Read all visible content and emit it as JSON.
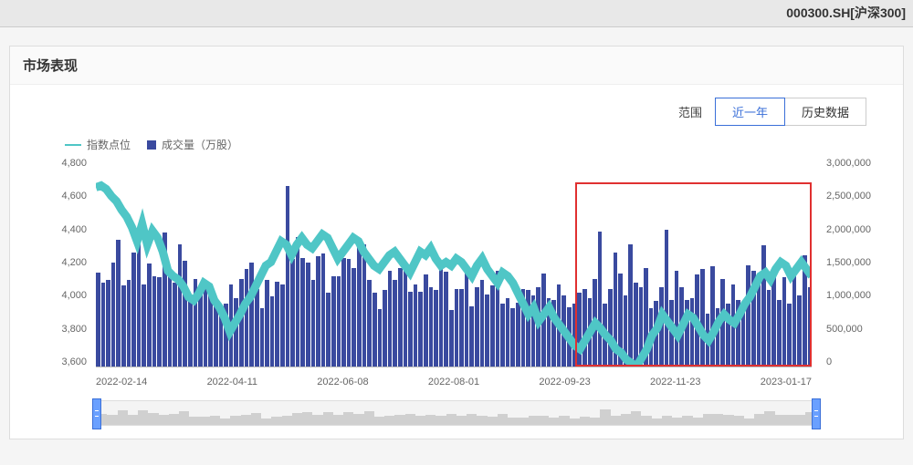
{
  "header": {
    "ticker": "000300.SH[沪深300]"
  },
  "panel": {
    "title": "市场表现"
  },
  "controls": {
    "range_label": "范围",
    "btn_year": "近一年",
    "btn_history": "历史数据",
    "active": "btn_year"
  },
  "legend": {
    "index_line": "指数点位",
    "volume_bar": "成交量（万股）"
  },
  "chart": {
    "type": "combo-bar-line",
    "line_color": "#4fc6c6",
    "bar_color": "#3a4a9f",
    "highlight_color": "#e03030",
    "background_color": "#ffffff",
    "y_left": {
      "min": 3600,
      "max": 4800,
      "ticks": [
        4800,
        4600,
        4400,
        4200,
        4000,
        3800,
        3600
      ]
    },
    "y_right": {
      "min": 0,
      "max": 3000000,
      "ticks": [
        "3,000,000",
        "2,500,000",
        "2,000,000",
        "1,500,000",
        "1,000,000",
        "500,000",
        "0"
      ]
    },
    "x_ticks": [
      "2022-02-14",
      "2022-04-11",
      "2022-06-08",
      "2022-08-01",
      "2022-09-23",
      "2022-11-23",
      "2023-01-17"
    ],
    "highlight_region": {
      "x_start_pct": 67,
      "x_end_pct": 100,
      "y_top_pct": 12,
      "y_bottom_pct": 100
    },
    "index_values": [
      4630,
      4640,
      4620,
      4580,
      4550,
      4500,
      4460,
      4400,
      4320,
      4420,
      4300,
      4380,
      4340,
      4260,
      4150,
      4120,
      4100,
      4060,
      4000,
      3980,
      4020,
      4080,
      4060,
      3980,
      3940,
      3880,
      3800,
      3850,
      3900,
      3960,
      4000,
      4060,
      4120,
      4180,
      4200,
      4260,
      4320,
      4300,
      4240,
      4300,
      4340,
      4300,
      4280,
      4320,
      4360,
      4340,
      4280,
      4220,
      4260,
      4300,
      4340,
      4320,
      4260,
      4220,
      4180,
      4160,
      4200,
      4240,
      4260,
      4220,
      4180,
      4140,
      4200,
      4260,
      4240,
      4280,
      4220,
      4180,
      4200,
      4180,
      4220,
      4200,
      4160,
      4120,
      4180,
      4220,
      4160,
      4120,
      4080,
      4140,
      4120,
      4080,
      4020,
      3960,
      3900,
      3940,
      3860,
      3900,
      3940,
      3880,
      3840,
      3800,
      3760,
      3720,
      3700,
      3750,
      3800,
      3850,
      3820,
      3780,
      3750,
      3700,
      3680,
      3640,
      3620,
      3600,
      3650,
      3700,
      3780,
      3820,
      3900,
      3860,
      3820,
      3780,
      3840,
      3900,
      3880,
      3830,
      3780,
      3750,
      3800,
      3860,
      3900,
      3870,
      3850,
      3900,
      3960,
      4000,
      4060,
      4120,
      4140,
      4100,
      4160,
      4200,
      4180,
      4120,
      4160,
      4200,
      4160,
      4120
    ],
    "volume_values": [
      1350000,
      1210000,
      1240000,
      1500000,
      1820000,
      1160000,
      1240000,
      1640000,
      1880000,
      1180000,
      1480000,
      1300000,
      1280000,
      1920000,
      1380000,
      1200000,
      1760000,
      1520000,
      1020000,
      1260000,
      1040000,
      1140000,
      1120000,
      960000,
      840000,
      900000,
      1180000,
      980000,
      1260000,
      1400000,
      1500000,
      1120000,
      840000,
      1240000,
      1010000,
      1220000,
      1180000,
      2600000,
      1540000,
      1860000,
      1560000,
      1500000,
      1250000,
      1580000,
      1620000,
      1060000,
      1302000,
      1300000,
      1560000,
      1540000,
      1420000,
      1740000,
      1760000,
      1240000,
      1060000,
      830000,
      1100000,
      1380000,
      1240000,
      1420000,
      1380000,
      1080000,
      1180000,
      1080000,
      1320000,
      1140000,
      1100000,
      1500000,
      1360000,
      810000,
      1113000,
      1120000,
      1440000,
      870000,
      1140000,
      1240000,
      1040000,
      1160000,
      1380000,
      900000,
      980000,
      840000,
      920000,
      1120000,
      1100000,
      1020000,
      1140000,
      1340000,
      980000,
      960000,
      1180000,
      1020000,
      850000,
      900000,
      1060000,
      1120000,
      980000,
      1260000,
      1940000,
      900000,
      1120000,
      1640000,
      1340000,
      1020000,
      1760000,
      1200000,
      1140000,
      1420000,
      840000,
      940000,
      1140000,
      1960000,
      960000,
      1380000,
      1140000,
      960000,
      980000,
      1320000,
      1400000,
      760000,
      1440000,
      840000,
      1260000,
      900000,
      1180000,
      960000,
      840000,
      1460000,
      1380000,
      1300000,
      1740000,
      1100000,
      1280000,
      960000,
      1280000,
      900000,
      1320000,
      1020000,
      1600000,
      1140000
    ]
  }
}
